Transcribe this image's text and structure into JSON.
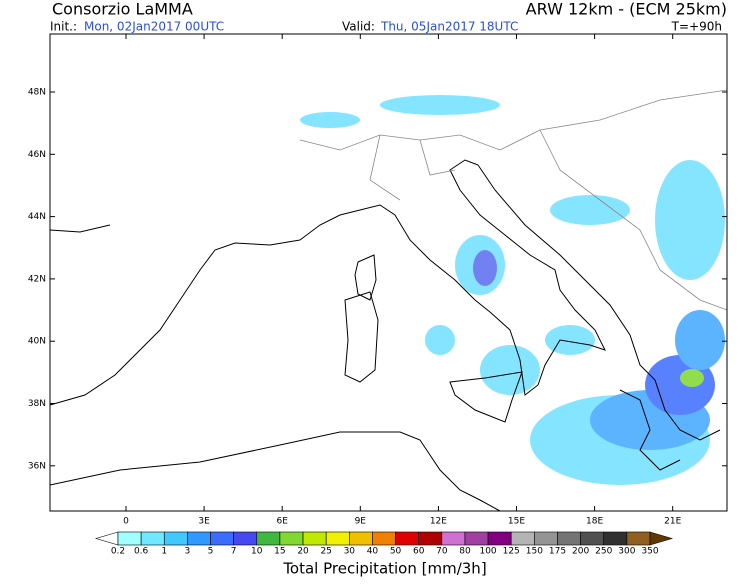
{
  "header": {
    "title": "Consorzio LaMMA",
    "model": "ARW 12km - (ECM 25km)",
    "init_label": "Init.:",
    "init_value": "Mon, 02Jan2017 00UTC",
    "valid_label": "Valid:",
    "valid_value": "Thu, 05Jan2017 18UTC",
    "lead_time": "T=+90h"
  },
  "map": {
    "lat_labels": [
      "48N",
      "46N",
      "44N",
      "42N",
      "40N",
      "38N",
      "36N"
    ],
    "lon_labels": [
      "0",
      "3E",
      "6E",
      "9E",
      "12E",
      "15E",
      "18E",
      "21E"
    ]
  },
  "colorbar": {
    "title": "Total Precipitation [mm/3h]",
    "labels": [
      "0.2",
      "0.6",
      "1",
      "3",
      "5",
      "7",
      "10",
      "15",
      "20",
      "25",
      "30",
      "40",
      "50",
      "60",
      "70",
      "80",
      "100",
      "125",
      "150",
      "175",
      "200",
      "250",
      "300",
      "350"
    ],
    "colors": [
      "#ffffff",
      "#a0ffff",
      "#70e8ff",
      "#40c8ff",
      "#3098ff",
      "#3a6cff",
      "#4848f0",
      "#40b840",
      "#80d830",
      "#c0e800",
      "#f0f000",
      "#f0c000",
      "#f08000",
      "#e00000",
      "#b00000",
      "#d070d0",
      "#a040a0",
      "#800080",
      "#b4b4b4",
      "#949494",
      "#747474",
      "#505050",
      "#303030",
      "#906020",
      "#603800"
    ]
  }
}
